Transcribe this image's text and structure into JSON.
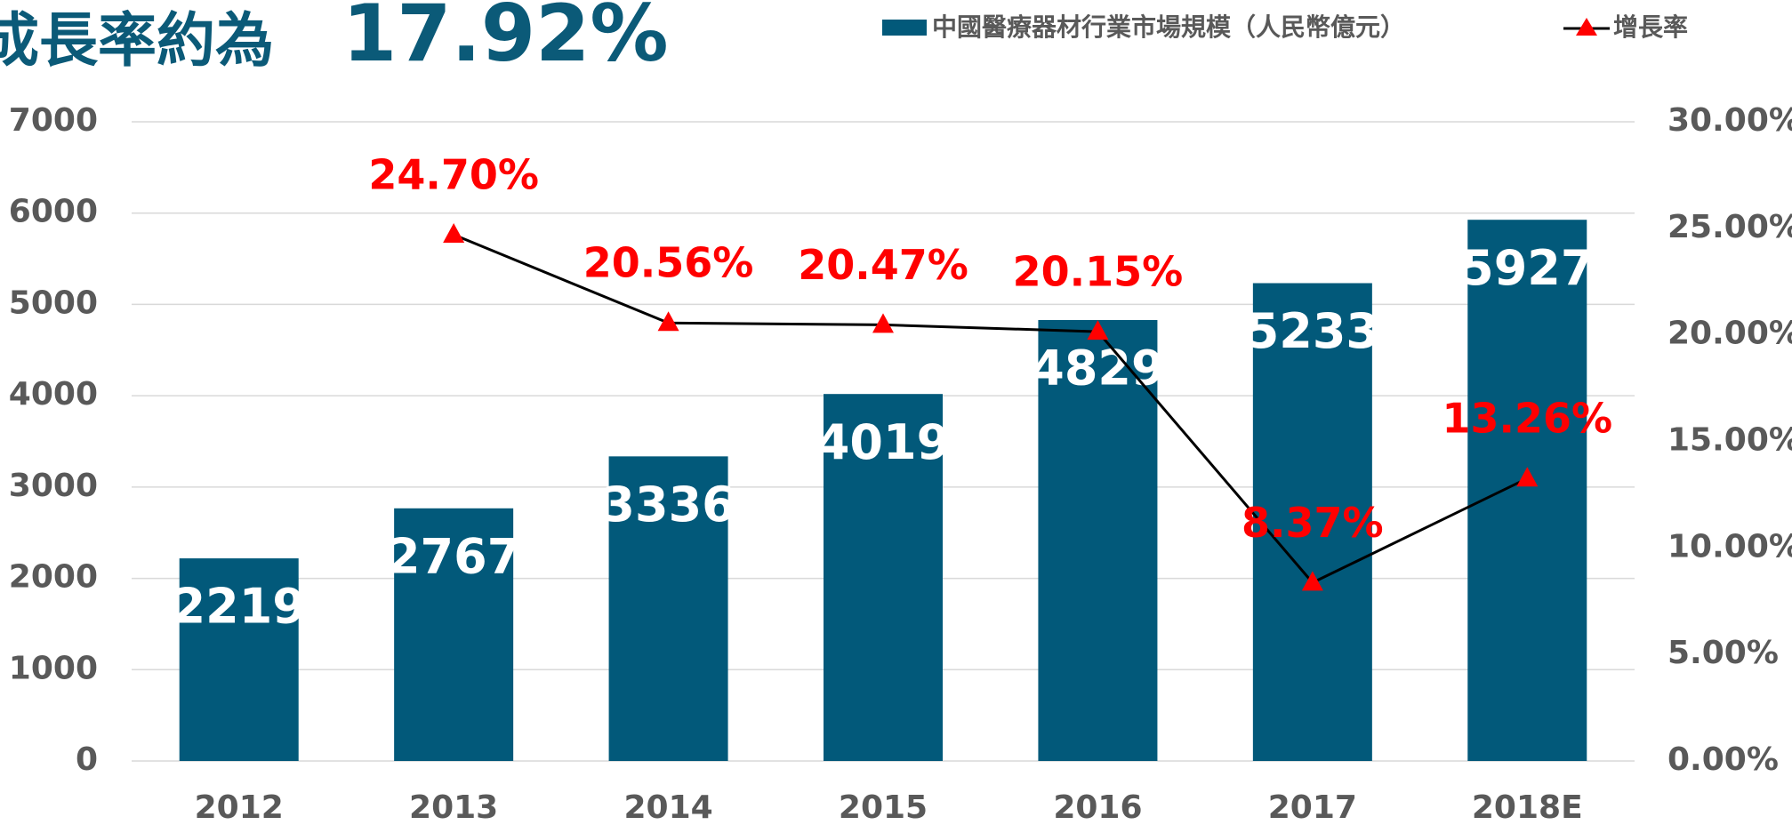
{
  "chart_data": {
    "type": "bar",
    "title_parts": [
      "成長率約為",
      "17.92%"
    ],
    "categories": [
      "2012",
      "2013",
      "2014",
      "2015",
      "2016",
      "2017",
      "2018E"
    ],
    "series": [
      {
        "name": "中國醫療器材行業市場規模（人民幣億元）",
        "type": "bar",
        "color": "#02597a",
        "values": [
          2219,
          2767,
          3336,
          4019,
          4829,
          5233,
          5927
        ]
      },
      {
        "name": "增長率",
        "type": "line",
        "axis": "y2",
        "color": "#000000",
        "marker_color": "#ff0000",
        "values": [
          null,
          24.7,
          20.56,
          20.47,
          20.15,
          8.37,
          13.26
        ],
        "value_labels": [
          null,
          "24.70%",
          "20.56%",
          "20.47%",
          "20.15%",
          "8.37%",
          "13.26%"
        ]
      }
    ],
    "ylim": [
      0,
      7000
    ],
    "yticks": [
      0,
      1000,
      2000,
      3000,
      4000,
      5000,
      6000,
      7000
    ],
    "y2lim": [
      0,
      30
    ],
    "y2ticks": [
      {
        "value": 0,
        "label": "0.00%"
      },
      {
        "value": 5,
        "label": "5.00%"
      },
      {
        "value": 10,
        "label": "10.00%"
      },
      {
        "value": 15,
        "label": "15.00%"
      },
      {
        "value": 20,
        "label": "20.00%"
      },
      {
        "value": 25,
        "label": "25.00%"
      },
      {
        "value": 30,
        "label": "30.00%"
      }
    ],
    "grid": true,
    "legend": "top"
  }
}
